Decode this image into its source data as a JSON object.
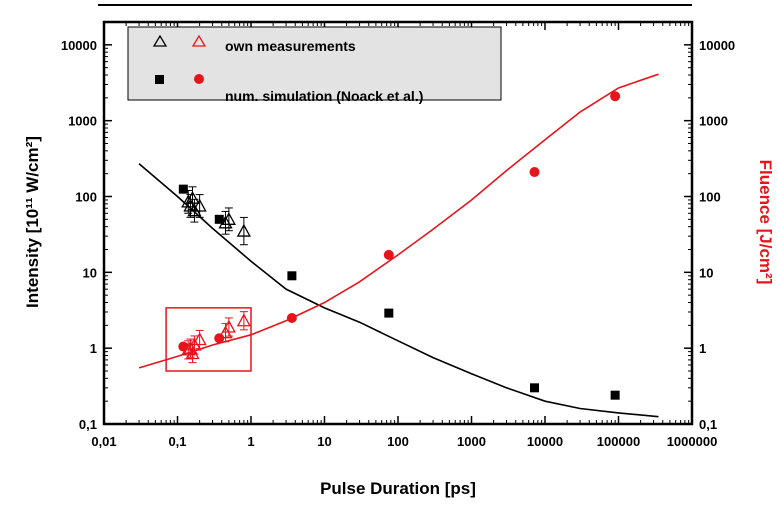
{
  "chart_data": {
    "type": "scatter",
    "xlabel": "Pulse Duration  [ps]",
    "ylabel_left": "Intensity  [10¹¹ W/cm²]",
    "ylabel_right": "Fluence  [J/cm²]",
    "xscale": "log",
    "yscale": "log",
    "xlim": [
      0.01,
      1000000
    ],
    "ylim": [
      0.1,
      20000
    ],
    "x_ticks": [
      "0,01",
      "0,1",
      "1",
      "10",
      "100",
      "1000",
      "10000",
      "100000",
      "1000000"
    ],
    "y_ticks_left": [
      "0,1",
      "1",
      "10",
      "100",
      "1000",
      "10000"
    ],
    "y_ticks_right": [
      "0,1",
      "1",
      "10",
      "100",
      "1000",
      "10000"
    ],
    "legend": {
      "position": "top-left",
      "entries": [
        {
          "label": "own measurements",
          "markers": [
            "open-triangle-black",
            "open-triangle-red"
          ]
        },
        {
          "label": "num. simulation (Noack et al.)",
          "markers": [
            "filled-square-black",
            "filled-circle-red"
          ]
        }
      ]
    },
    "series": [
      {
        "name": "intensity simulation",
        "marker": "square",
        "color": "#000000",
        "x": [
          0.12,
          0.37,
          3.6,
          75,
          7200,
          90000
        ],
        "y": [
          125,
          50,
          9,
          2.9,
          0.3,
          0.24
        ]
      },
      {
        "name": "fluence simulation",
        "marker": "circle",
        "color": "#e8141b",
        "x": [
          0.12,
          0.37,
          3.6,
          75,
          7200,
          90000
        ],
        "y": [
          1.05,
          1.35,
          2.5,
          17,
          210,
          2100
        ]
      },
      {
        "name": "intensity measurements",
        "marker": "open-triangle",
        "color": "#000000",
        "x": [
          0.14,
          0.15,
          0.16,
          0.17,
          0.2,
          0.45,
          0.5,
          0.8
        ],
        "y": [
          85,
          75,
          95,
          65,
          75,
          45,
          50,
          35
        ],
        "err": [
          0.15,
          0.15,
          0.15,
          0.15,
          0.15,
          0.15,
          0.15,
          0.18
        ]
      },
      {
        "name": "fluence measurements",
        "marker": "open-triangle",
        "color": "#e8141b",
        "x": [
          0.14,
          0.15,
          0.16,
          0.17,
          0.2,
          0.45,
          0.5,
          0.8
        ],
        "y": [
          0.95,
          1.0,
          0.85,
          1.1,
          1.3,
          1.6,
          1.9,
          2.3
        ],
        "err": [
          0.12,
          0.12,
          0.12,
          0.12,
          0.12,
          0.12,
          0.12,
          0.12
        ]
      },
      {
        "name": "intensity fit",
        "type": "line",
        "color": "#000000",
        "x": [
          0.03,
          0.1,
          0.3,
          1,
          3,
          10,
          30,
          100,
          300,
          1000,
          3000,
          10000,
          30000,
          100000,
          350000
        ],
        "y": [
          270,
          100,
          38,
          14,
          6,
          3.4,
          2.2,
          1.25,
          0.75,
          0.46,
          0.3,
          0.2,
          0.16,
          0.14,
          0.125
        ]
      },
      {
        "name": "fluence fit",
        "type": "line",
        "color": "#e8141b",
        "x": [
          0.03,
          0.1,
          0.3,
          1,
          3,
          10,
          30,
          100,
          300,
          1000,
          3000,
          10000,
          30000,
          100000,
          350000
        ],
        "y": [
          0.55,
          0.78,
          1.1,
          1.5,
          2.3,
          4.0,
          7.5,
          17,
          37,
          90,
          220,
          560,
          1300,
          2700,
          4100
        ]
      }
    ],
    "highlight_box": {
      "color": "#e8141b",
      "x_range": [
        0.07,
        1.0
      ],
      "y_range": [
        0.5,
        3.4
      ]
    }
  }
}
